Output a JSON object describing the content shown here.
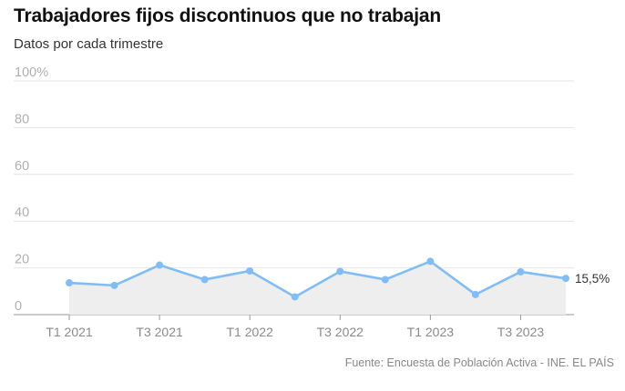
{
  "chart_data": {
    "type": "area",
    "title": "Trabajadores fijos discontinuos que no trabajan",
    "subtitle": "Datos por cada trimestre",
    "source": "Fuente: Encuesta de Población Activa - INE. EL PAÍS",
    "x_tick_labels": [
      "T1 2021",
      "T3 2021",
      "T1 2022",
      "T3 2022",
      "T1 2023",
      "T3 2023"
    ],
    "y_tick_labels": [
      "100%",
      "80",
      "60",
      "40",
      "20",
      "0"
    ],
    "y_ticks": [
      100,
      80,
      60,
      40,
      20,
      0
    ],
    "ylim": [
      0,
      100
    ],
    "grid": true,
    "x": [
      "T1 2021",
      "T2 2021",
      "T3 2021",
      "T4 2021",
      "T1 2022",
      "T2 2022",
      "T3 2022",
      "T4 2022",
      "T1 2023",
      "T2 2023",
      "T3 2023",
      "T4 2023"
    ],
    "series": [
      {
        "values": [
          13.6,
          12.5,
          21.2,
          15.0,
          18.7,
          7.6,
          18.5,
          15.0,
          22.8,
          8.6,
          18.3,
          15.5
        ]
      }
    ],
    "end_label": "15,5%",
    "colors": {
      "line": "#80bdf7",
      "fill": "#eeeeee",
      "grid": "#e4e4e4",
      "baseline": "#999999"
    }
  }
}
